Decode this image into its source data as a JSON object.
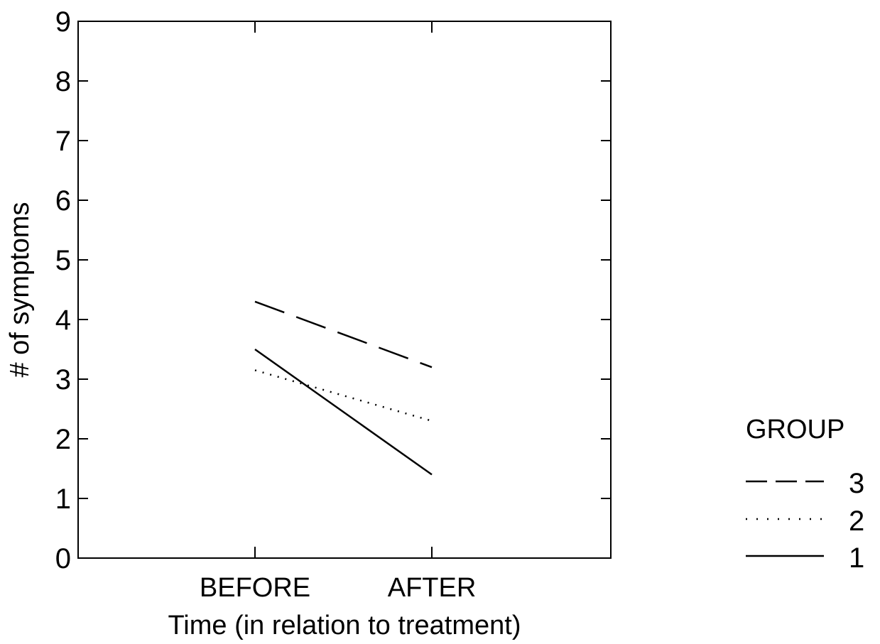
{
  "chart_data": {
    "type": "line",
    "categories": [
      "BEFORE",
      "AFTER"
    ],
    "xlabel": "Time (in relation to treatment)",
    "ylabel": "# of symptoms",
    "ylim": [
      0,
      9
    ],
    "yticks": [
      0,
      1,
      2,
      3,
      4,
      5,
      6,
      7,
      8,
      9
    ],
    "legend_title": "GROUP",
    "legend_position": "bottom-right outside plot",
    "grid": false,
    "series": [
      {
        "name": "3",
        "style": "dashed",
        "values": [
          4.3,
          3.2
        ]
      },
      {
        "name": "2",
        "style": "dotted",
        "values": [
          3.15,
          2.3
        ]
      },
      {
        "name": "1",
        "style": "solid",
        "values": [
          3.5,
          1.4
        ]
      }
    ]
  }
}
